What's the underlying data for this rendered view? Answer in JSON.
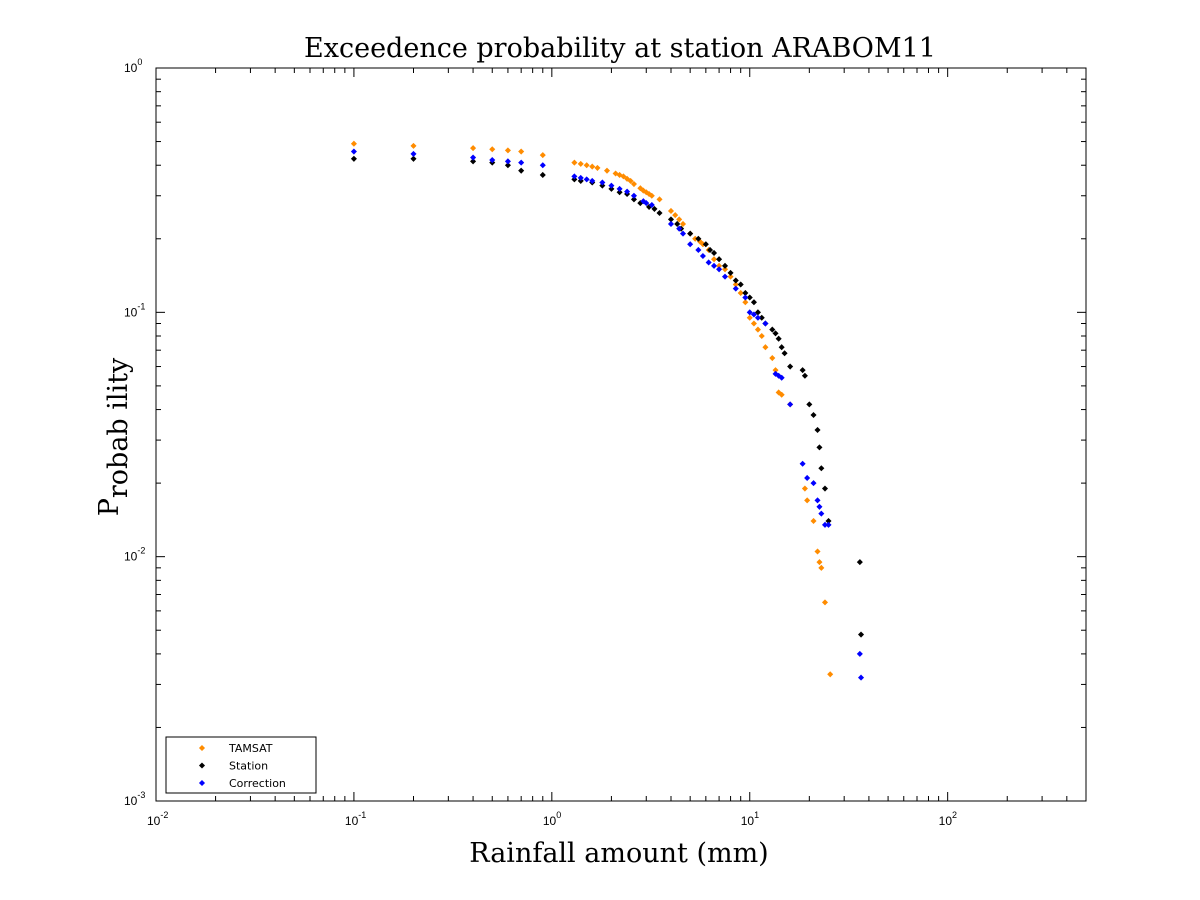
{
  "chart_data": {
    "type": "scatter",
    "title": "Exceedence probability at station ARABOM11",
    "xlabel": "Rainfall amount (mm)",
    "ylabel_main": "P",
    "ylabel_sub": "robab ility",
    "xscale": "log",
    "yscale": "log",
    "xlim": [
      0.01,
      500
    ],
    "ylim": [
      0.001,
      1
    ],
    "grid": false,
    "legend_position": "bottom-left",
    "x_ticks": [
      {
        "base": "10",
        "exp": "-2",
        "value": 0.01
      },
      {
        "base": "10",
        "exp": "-1",
        "value": 0.1
      },
      {
        "base": "10",
        "exp": "0",
        "value": 1
      },
      {
        "base": "10",
        "exp": "1",
        "value": 10
      },
      {
        "base": "10",
        "exp": "2",
        "value": 100
      }
    ],
    "y_ticks": [
      {
        "base": "10",
        "exp": "0",
        "value": 1
      },
      {
        "base": "10",
        "exp": "-1",
        "value": 0.1
      },
      {
        "base": "10",
        "exp": "-2",
        "value": 0.01
      },
      {
        "base": "10",
        "exp": "-3",
        "value": 0.001
      }
    ],
    "series": [
      {
        "name": "TAMSAT",
        "color": "#ff8c00",
        "points": [
          [
            0.1,
            0.49
          ],
          [
            0.2,
            0.48
          ],
          [
            0.4,
            0.47
          ],
          [
            0.5,
            0.465
          ],
          [
            0.6,
            0.46
          ],
          [
            0.7,
            0.455
          ],
          [
            0.9,
            0.44
          ],
          [
            1.3,
            0.41
          ],
          [
            1.4,
            0.405
          ],
          [
            1.5,
            0.4
          ],
          [
            1.6,
            0.395
          ],
          [
            1.7,
            0.39
          ],
          [
            1.9,
            0.38
          ],
          [
            2.1,
            0.37
          ],
          [
            2.2,
            0.365
          ],
          [
            2.3,
            0.36
          ],
          [
            2.4,
            0.352
          ],
          [
            2.5,
            0.345
          ],
          [
            2.6,
            0.335
          ],
          [
            2.8,
            0.322
          ],
          [
            2.9,
            0.315
          ],
          [
            3.0,
            0.31
          ],
          [
            3.1,
            0.305
          ],
          [
            3.2,
            0.3
          ],
          [
            3.5,
            0.29
          ],
          [
            4.0,
            0.26
          ],
          [
            4.2,
            0.25
          ],
          [
            4.4,
            0.24
          ],
          [
            4.6,
            0.23
          ],
          [
            5.0,
            0.21
          ],
          [
            5.3,
            0.2
          ],
          [
            5.6,
            0.195
          ],
          [
            5.8,
            0.19
          ],
          [
            6.2,
            0.18
          ],
          [
            6.6,
            0.165
          ],
          [
            7.0,
            0.155
          ],
          [
            7.5,
            0.15
          ],
          [
            8.0,
            0.14
          ],
          [
            8.5,
            0.13
          ],
          [
            9.0,
            0.12
          ],
          [
            9.5,
            0.11
          ],
          [
            10,
            0.095
          ],
          [
            10.5,
            0.09
          ],
          [
            11,
            0.085
          ],
          [
            11.5,
            0.08
          ],
          [
            12,
            0.072
          ],
          [
            13,
            0.065
          ],
          [
            13.5,
            0.058
          ],
          [
            14,
            0.047
          ],
          [
            14.5,
            0.046
          ],
          [
            16,
            0.042
          ],
          [
            19,
            0.019
          ],
          [
            19.5,
            0.017
          ],
          [
            21,
            0.014
          ],
          [
            22,
            0.0105
          ],
          [
            22.5,
            0.0095
          ],
          [
            23,
            0.009
          ],
          [
            24,
            0.0065
          ],
          [
            25.5,
            0.0033
          ]
        ]
      },
      {
        "name": "Station",
        "color": "#000000",
        "points": [
          [
            0.1,
            0.425
          ],
          [
            0.2,
            0.425
          ],
          [
            0.4,
            0.415
          ],
          [
            0.5,
            0.41
          ],
          [
            0.6,
            0.4
          ],
          [
            0.7,
            0.38
          ],
          [
            0.9,
            0.365
          ],
          [
            1.3,
            0.35
          ],
          [
            1.4,
            0.345
          ],
          [
            1.6,
            0.34
          ],
          [
            1.8,
            0.33
          ],
          [
            2.0,
            0.32
          ],
          [
            2.2,
            0.31
          ],
          [
            2.4,
            0.305
          ],
          [
            2.6,
            0.29
          ],
          [
            2.8,
            0.28
          ],
          [
            3.1,
            0.27
          ],
          [
            3.3,
            0.265
          ],
          [
            3.5,
            0.255
          ],
          [
            4.0,
            0.24
          ],
          [
            4.3,
            0.23
          ],
          [
            4.5,
            0.22
          ],
          [
            5.0,
            0.21
          ],
          [
            5.5,
            0.2
          ],
          [
            6.0,
            0.19
          ],
          [
            6.3,
            0.18
          ],
          [
            6.6,
            0.175
          ],
          [
            7.0,
            0.165
          ],
          [
            7.5,
            0.155
          ],
          [
            8.0,
            0.145
          ],
          [
            8.5,
            0.135
          ],
          [
            9.0,
            0.13
          ],
          [
            9.5,
            0.12
          ],
          [
            10,
            0.115
          ],
          [
            10.5,
            0.11
          ],
          [
            11,
            0.1
          ],
          [
            11.5,
            0.095
          ],
          [
            12,
            0.09
          ],
          [
            13,
            0.085
          ],
          [
            13.5,
            0.082
          ],
          [
            14,
            0.078
          ],
          [
            14.5,
            0.072
          ],
          [
            15,
            0.068
          ],
          [
            16,
            0.06
          ],
          [
            18.5,
            0.058
          ],
          [
            19,
            0.055
          ],
          [
            20,
            0.042
          ],
          [
            21,
            0.038
          ],
          [
            22,
            0.033
          ],
          [
            22.5,
            0.028
          ],
          [
            23,
            0.023
          ],
          [
            24,
            0.019
          ],
          [
            25,
            0.014
          ],
          [
            36,
            0.0095
          ],
          [
            36.5,
            0.0048
          ]
        ]
      },
      {
        "name": "Correction",
        "color": "#0000ff",
        "points": [
          [
            0.1,
            0.455
          ],
          [
            0.2,
            0.445
          ],
          [
            0.4,
            0.43
          ],
          [
            0.5,
            0.42
          ],
          [
            0.6,
            0.415
          ],
          [
            0.7,
            0.41
          ],
          [
            0.9,
            0.4
          ],
          [
            1.3,
            0.36
          ],
          [
            1.4,
            0.355
          ],
          [
            1.5,
            0.35
          ],
          [
            1.6,
            0.345
          ],
          [
            1.8,
            0.34
          ],
          [
            2.0,
            0.33
          ],
          [
            2.2,
            0.32
          ],
          [
            2.4,
            0.312
          ],
          [
            2.6,
            0.3
          ],
          [
            2.9,
            0.285
          ],
          [
            3.0,
            0.28
          ],
          [
            3.2,
            0.275
          ],
          [
            4.0,
            0.23
          ],
          [
            4.4,
            0.22
          ],
          [
            4.6,
            0.21
          ],
          [
            5.0,
            0.19
          ],
          [
            5.5,
            0.18
          ],
          [
            5.8,
            0.17
          ],
          [
            6.2,
            0.16
          ],
          [
            6.6,
            0.155
          ],
          [
            7.0,
            0.15
          ],
          [
            7.5,
            0.14
          ],
          [
            8.5,
            0.125
          ],
          [
            9.5,
            0.115
          ],
          [
            10,
            0.1
          ],
          [
            10.5,
            0.098
          ],
          [
            11,
            0.095
          ],
          [
            12,
            0.09
          ],
          [
            13.5,
            0.056
          ],
          [
            14,
            0.055
          ],
          [
            14.5,
            0.054
          ],
          [
            16,
            0.042
          ],
          [
            18.5,
            0.024
          ],
          [
            19.5,
            0.021
          ],
          [
            21,
            0.02
          ],
          [
            22,
            0.017
          ],
          [
            22.5,
            0.016
          ],
          [
            23,
            0.015
          ],
          [
            24,
            0.0135
          ],
          [
            25,
            0.0135
          ],
          [
            36,
            0.004
          ],
          [
            36.5,
            0.0032
          ]
        ]
      }
    ]
  }
}
